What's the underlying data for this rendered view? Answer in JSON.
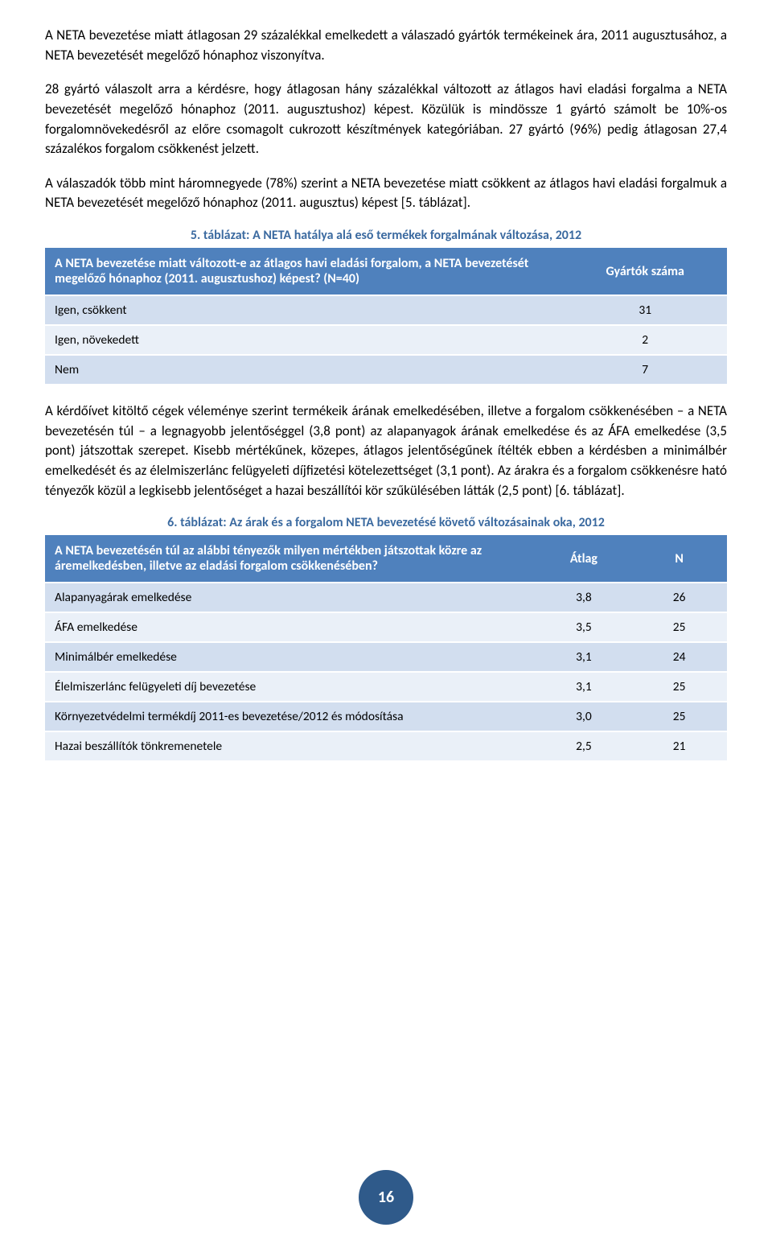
{
  "colors": {
    "caption": "#3b6aa0",
    "table_header_bg": "#4f81bd",
    "row_odd_bg": "#d2deef",
    "row_even_bg": "#eaf0f8",
    "badge_bg": "#2f5a8a"
  },
  "paragraphs": {
    "p1": "A NETA bevezetése miatt átlagosan 29 százalékkal emelkedett a válaszadó gyártók termékeinek ára, 2011 augusztusához, a NETA bevezetését megelőző hónaphoz viszonyítva.",
    "p2": "28 gyártó válaszolt arra a kérdésre, hogy átlagosan hány százalékkal változott az átlagos havi eladási forgalma a NETA bevezetését megelőző hónaphoz (2011. augusztushoz) képest. Közülük is mindössze 1 gyártó számolt be 10%-os forgalomnövekedésről az előre csomagolt cukrozott készítmények kategóriában. 27 gyártó (96%) pedig átlagosan 27,4 százalékos forgalom csökkenést jelzett.",
    "p3": "A válaszadók több mint háromnegyede (78%) szerint a NETA bevezetése miatt csökkent az átlagos havi eladási forgalmuk a NETA bevezetését megelőző hónaphoz (2011. augusztus) képest [5. táblázat].",
    "p4": "A kérdőívet kitöltő cégek véleménye szerint termékeik árának emelkedésében, illetve a forgalom csökkenésében – a NETA bevezetésén túl – a legnagyobb jelentőséggel (3,8 pont) az alapanyagok árának emelkedése és az ÁFA emelkedése (3,5 pont) játszottak szerepet. Kisebb mértékűnek, közepes, átlagos jelentőségűnek ítélték ebben a kérdésben a minimálbér emelkedését és az élelmiszerlánc felügyeleti díjfizetési kötelezettséget (3,1 pont). Az árakra és a forgalom csökkenésre ható tényezők közül a legkisebb jelentőséget a hazai beszállítói kör szűkülésében látták (2,5 pont) [6. táblázat]."
  },
  "table5": {
    "caption": "5. táblázat: A NETA hatálya alá eső termékek forgalmának változása, 2012",
    "header_q": "A NETA bevezetése miatt változott-e az átlagos havi eladási forgalom, a NETA bevezetését megelőző hónaphoz (2011. augusztushoz) képest? (N=40)",
    "header_col2": "Gyártók száma",
    "rows": [
      {
        "label": "Igen, csökkent",
        "value": "31"
      },
      {
        "label": "Igen, növekedett",
        "value": "2"
      },
      {
        "label": "Nem",
        "value": "7"
      }
    ]
  },
  "table6": {
    "caption": "6. táblázat: Az árak és a forgalom NETA bevezetésé követő változásainak oka, 2012",
    "header_q": "A NETA bevezetésén túl az alábbi tényezők milyen mértékben játszottak közre az áremelkedésben, illetve az eladási forgalom csökkenésében?",
    "header_col2": "Átlag",
    "header_col3": "N",
    "rows": [
      {
        "label": "Alapanyagárak emelkedése",
        "avg": "3,8",
        "n": "26"
      },
      {
        "label": "ÁFA emelkedése",
        "avg": "3,5",
        "n": "25"
      },
      {
        "label": "Minimálbér emelkedése",
        "avg": "3,1",
        "n": "24"
      },
      {
        "label": "Élelmiszerlánc felügyeleti díj bevezetése",
        "avg": "3,1",
        "n": "25"
      },
      {
        "label": "Környezetvédelmi termékdíj 2011-es bevezetése/2012 és módosítása",
        "avg": "3,0",
        "n": "25"
      },
      {
        "label": "Hazai beszállítók tönkremenetele",
        "avg": "2,5",
        "n": "21"
      }
    ]
  },
  "page_number": "16"
}
